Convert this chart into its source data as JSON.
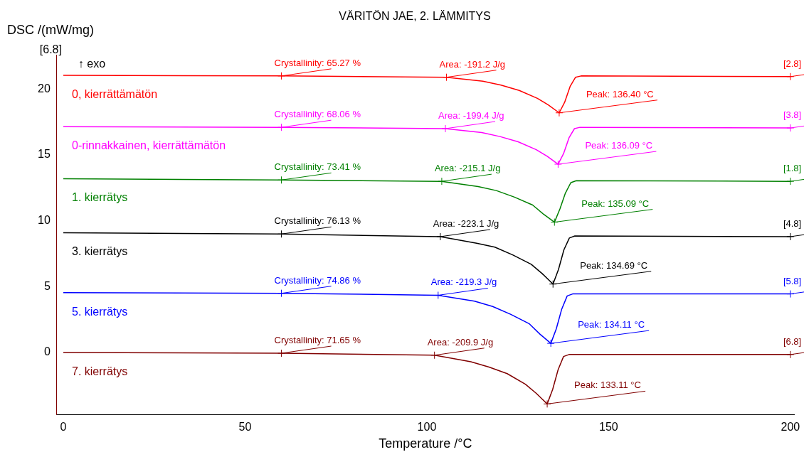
{
  "chart_data": {
    "type": "line",
    "title": "VÄRITÖN JAE, 2. LÄMMITYS",
    "xlabel": "Temperature /°C",
    "ylabel": "DSC /(mW/mg)",
    "xlim": [
      -1.8,
      201
    ],
    "xticks": [
      0,
      50,
      100,
      150,
      200
    ],
    "ylim": [
      -4.7,
      22.6
    ],
    "yticks": [
      0,
      5,
      10,
      15,
      20
    ],
    "grid": false,
    "legend": false,
    "marker": "none",
    "line_style": "solid",
    "series": [
      {
        "name": "0, kierrättämätön",
        "color": "#ff0000",
        "x": [
          0,
          60,
          105.4,
          115.4,
          120.4,
          125.4,
          130.4,
          133.4,
          136.4,
          137.9,
          139.4,
          140.9,
          142.4,
          200
        ],
        "values": [
          21.05,
          21.0,
          20.9,
          20.6,
          20.3,
          19.9,
          19.3,
          18.8,
          18.2,
          19.0,
          20.2,
          20.9,
          21.0,
          20.95
        ]
      },
      {
        "name": "0-rinnakkainen, kierrättämätön",
        "color": "#ff00ff",
        "x": [
          0,
          60,
          105.1,
          115.1,
          120.1,
          125.1,
          130.1,
          133.1,
          136.1,
          137.6,
          139.1,
          140.6,
          142.1,
          200
        ],
        "values": [
          17.15,
          17.1,
          17.0,
          16.7,
          16.4,
          16.0,
          15.4,
          14.9,
          14.3,
          15.1,
          16.3,
          17.0,
          17.1,
          17.05
        ]
      },
      {
        "name": "1. kierrätys",
        "color": "#008000",
        "x": [
          0,
          60,
          104.1,
          114.1,
          119.1,
          124.1,
          129.1,
          132.1,
          135.1,
          136.6,
          138.1,
          139.6,
          141.1,
          200
        ],
        "values": [
          13.2,
          13.1,
          13.0,
          12.6,
          12.3,
          11.8,
          11.2,
          10.5,
          9.9,
          10.9,
          12.1,
          12.9,
          13.05,
          13.0
        ]
      },
      {
        "name": "3. kierrätys",
        "color": "#000000",
        "x": [
          0,
          60,
          103.7,
          113.7,
          118.7,
          123.7,
          128.7,
          131.7,
          134.7,
          136.2,
          137.7,
          139.2,
          140.7,
          200
        ],
        "values": [
          9.1,
          9.0,
          8.8,
          8.3,
          8.0,
          7.4,
          6.7,
          6.0,
          5.2,
          6.3,
          7.8,
          8.7,
          8.85,
          8.8
        ]
      },
      {
        "name": "5. kierrätys",
        "color": "#0000ff",
        "x": [
          0,
          60,
          103.1,
          113.1,
          118.1,
          123.1,
          128.1,
          131.1,
          134.1,
          135.6,
          137.1,
          138.6,
          140.1,
          200
        ],
        "values": [
          4.55,
          4.5,
          4.35,
          3.9,
          3.5,
          2.9,
          2.2,
          1.4,
          0.7,
          1.8,
          3.3,
          4.3,
          4.45,
          4.45
        ]
      },
      {
        "name": "7. kierrätys",
        "color": "#800000",
        "x": [
          0,
          60,
          102.1,
          112.1,
          117.1,
          122.1,
          127.1,
          130.1,
          133.1,
          134.6,
          136.1,
          137.6,
          139.1,
          200
        ],
        "values": [
          0.0,
          -0.05,
          -0.2,
          -0.7,
          -1.1,
          -1.6,
          -2.4,
          -3.1,
          -3.9,
          -2.8,
          -1.3,
          -0.3,
          -0.15,
          -0.15
        ]
      }
    ],
    "annotations": [
      "[6.8]",
      "↑ exo",
      {
        "text": "Crystallinity: 65.27 %",
        "x": 60,
        "y": 21.0
      },
      {
        "text": "Area: -191.2 J/g",
        "x": 105.4,
        "y": 20.9
      },
      {
        "text": "Peak: 136.40 °C",
        "x": 136.4,
        "y": 18.2
      },
      {
        "text": "[2.8]",
        "x": 200,
        "y": 20.95
      },
      {
        "text": "Crystallinity: 68.06 %",
        "x": 60,
        "y": 17.1
      },
      {
        "text": "Area: -199.4 J/g",
        "x": 105.1,
        "y": 17.0
      },
      {
        "text": "Peak: 136.09 °C",
        "x": 136.1,
        "y": 14.3
      },
      {
        "text": "[3.8]",
        "x": 200,
        "y": 17.05
      },
      {
        "text": "Crystallinity: 73.41 %",
        "x": 60,
        "y": 13.1
      },
      {
        "text": "Area: -215.1 J/g",
        "x": 104.1,
        "y": 13.0
      },
      {
        "text": "Peak: 135.09 °C",
        "x": 135.1,
        "y": 9.9
      },
      {
        "text": "[1.8]",
        "x": 200,
        "y": 13.0
      },
      {
        "text": "Crystallinity: 76.13 %",
        "x": 60,
        "y": 9.0
      },
      {
        "text": "Area: -223.1 J/g",
        "x": 103.7,
        "y": 8.8
      },
      {
        "text": "Peak: 134.69 °C",
        "x": 134.7,
        "y": 5.2
      },
      {
        "text": "[4.8]",
        "x": 200,
        "y": 8.8
      },
      {
        "text": "Crystallinity: 74.86 %",
        "x": 60,
        "y": 4.5
      },
      {
        "text": "Area: -219.3 J/g",
        "x": 103.1,
        "y": 4.35
      },
      {
        "text": "Peak: 134.11 °C",
        "x": 134.1,
        "y": 0.7
      },
      {
        "text": "[5.8]",
        "x": 200,
        "y": 4.45
      },
      {
        "text": "Crystallinity: 71.65 %",
        "x": 60,
        "y": -0.05
      },
      {
        "text": "Area: -209.9 J/g",
        "x": 102.1,
        "y": -0.2
      },
      {
        "text": "Peak: 133.11 °C",
        "x": 133.1,
        "y": -3.9
      },
      {
        "text": "[6.8]",
        "x": 200,
        "y": -0.15
      }
    ]
  }
}
